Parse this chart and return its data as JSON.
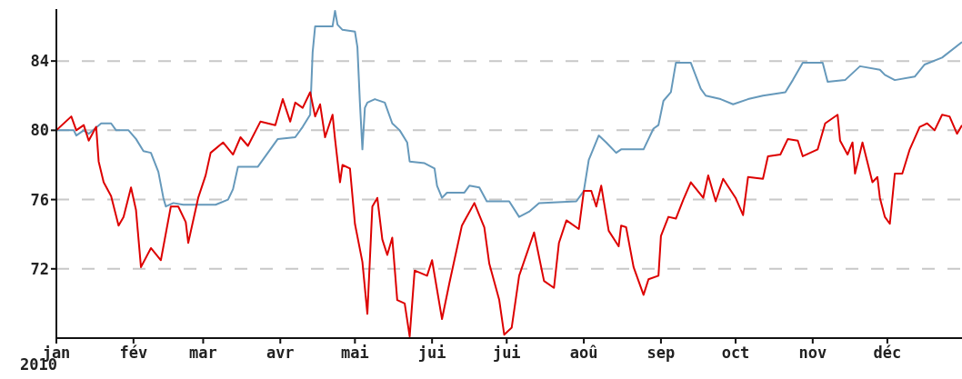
{
  "chart_data": {
    "type": "line",
    "annotations": [
      "2010"
    ],
    "xlim": [
      "2010-01-01",
      "2010-12-31"
    ],
    "xticks": [
      {
        "value": "2010-01-01",
        "label": "jan"
      },
      {
        "value": "2010-02-01",
        "label": "fév"
      },
      {
        "value": "2010-03-01",
        "label": "mar"
      },
      {
        "value": "2010-04-01",
        "label": "avr"
      },
      {
        "value": "2010-05-01",
        "label": "mai"
      },
      {
        "value": "2010-06-01",
        "label": "jui"
      },
      {
        "value": "2010-07-01",
        "label": "jui"
      },
      {
        "value": "2010-08-01",
        "label": "aoû"
      },
      {
        "value": "2010-09-01",
        "label": "sep"
      },
      {
        "value": "2010-10-01",
        "label": "oct"
      },
      {
        "value": "2010-11-01",
        "label": "nov"
      },
      {
        "value": "2010-12-01",
        "label": "déc"
      }
    ],
    "ylim": [
      68,
      87
    ],
    "yticks": [
      72,
      76,
      80,
      84
    ],
    "grid": "y",
    "marker": "none",
    "line_style": "solid",
    "series": [
      {
        "color": "#6699bb",
        "x": [
          "2010-01-01",
          "2010-01-08",
          "2010-01-09",
          "2010-01-12",
          "2010-01-14",
          "2010-01-19",
          "2010-01-23",
          "2010-01-25",
          "2010-01-30",
          "2010-02-02",
          "2010-02-05",
          "2010-02-08",
          "2010-02-11",
          "2010-02-13",
          "2010-02-14",
          "2010-02-17",
          "2010-02-21",
          "2010-03-06",
          "2010-03-11",
          "2010-03-13",
          "2010-03-15",
          "2010-03-23",
          "2010-03-27",
          "2010-03-31",
          "2010-04-07",
          "2010-04-10",
          "2010-04-13",
          "2010-04-14",
          "2010-04-15",
          "2010-04-22",
          "2010-04-23",
          "2010-04-24",
          "2010-04-26",
          "2010-05-01",
          "2010-05-02",
          "2010-05-03",
          "2010-05-04",
          "2010-05-05",
          "2010-05-06",
          "2010-05-09",
          "2010-05-13",
          "2010-05-16",
          "2010-05-19",
          "2010-05-22",
          "2010-05-23",
          "2010-05-29",
          "2010-06-02",
          "2010-06-03",
          "2010-06-05",
          "2010-06-07",
          "2010-06-14",
          "2010-06-16",
          "2010-06-20",
          "2010-06-23",
          "2010-07-02",
          "2010-07-06",
          "2010-07-10",
          "2010-07-14",
          "2010-07-29",
          "2010-08-01",
          "2010-08-03",
          "2010-08-07",
          "2010-08-10",
          "2010-08-14",
          "2010-08-16",
          "2010-08-25",
          "2010-08-29",
          "2010-08-31",
          "2010-09-02",
          "2010-09-05",
          "2010-09-07",
          "2010-09-13",
          "2010-09-17",
          "2010-09-19",
          "2010-09-25",
          "2010-09-30",
          "2010-10-06",
          "2010-10-12",
          "2010-10-21",
          "2010-10-24",
          "2010-10-28",
          "2010-11-05",
          "2010-11-07",
          "2010-11-14",
          "2010-11-20",
          "2010-11-28",
          "2010-11-30",
          "2010-12-04",
          "2010-12-12",
          "2010-12-16",
          "2010-12-23",
          "2010-12-31"
        ],
        "values": [
          80.0,
          80.0,
          79.7,
          80.0,
          79.8,
          80.4,
          80.4,
          80.0,
          80.0,
          79.5,
          78.8,
          78.7,
          77.6,
          76.1,
          75.6,
          75.8,
          75.7,
          75.7,
          76.0,
          76.6,
          77.9,
          77.9,
          78.7,
          79.5,
          79.6,
          80.2,
          80.9,
          84.5,
          86.0,
          86.0,
          86.9,
          86.1,
          85.8,
          85.7,
          84.8,
          81.6,
          78.9,
          81.3,
          81.6,
          81.8,
          81.6,
          80.4,
          80.0,
          79.3,
          78.2,
          78.1,
          77.8,
          76.8,
          76.1,
          76.4,
          76.4,
          76.8,
          76.7,
          75.9,
          75.9,
          75.0,
          75.3,
          75.8,
          75.9,
          76.5,
          78.3,
          79.7,
          79.3,
          78.7,
          78.9,
          78.9,
          80.1,
          80.3,
          81.7,
          82.2,
          83.9,
          83.9,
          82.4,
          82.0,
          81.8,
          81.5,
          81.8,
          82.0,
          82.2,
          82.9,
          83.9,
          83.9,
          82.8,
          82.9,
          83.7,
          83.5,
          83.2,
          82.9,
          83.1,
          83.8,
          84.2,
          85.1
        ]
      },
      {
        "color": "#dd0000",
        "x": [
          "2010-01-01",
          "2010-01-07",
          "2010-01-09",
          "2010-01-12",
          "2010-01-14",
          "2010-01-17",
          "2010-01-18",
          "2010-01-20",
          "2010-01-23",
          "2010-01-26",
          "2010-01-28",
          "2010-01-31",
          "2010-02-02",
          "2010-02-04",
          "2010-02-08",
          "2010-02-12",
          "2010-02-16",
          "2010-02-19",
          "2010-02-22",
          "2010-02-23",
          "2010-02-27",
          "2010-03-02",
          "2010-03-04",
          "2010-03-09",
          "2010-03-13",
          "2010-03-16",
          "2010-03-19",
          "2010-03-24",
          "2010-03-30",
          "2010-04-02",
          "2010-04-05",
          "2010-04-07",
          "2010-04-10",
          "2010-04-13",
          "2010-04-15",
          "2010-04-17",
          "2010-04-19",
          "2010-04-22",
          "2010-04-23",
          "2010-04-25",
          "2010-04-26",
          "2010-04-29",
          "2010-05-01",
          "2010-05-04",
          "2010-05-06",
          "2010-05-08",
          "2010-05-10",
          "2010-05-12",
          "2010-05-14",
          "2010-05-16",
          "2010-05-18",
          "2010-05-21",
          "2010-05-23",
          "2010-05-25",
          "2010-05-30",
          "2010-06-01",
          "2010-06-05",
          "2010-06-08",
          "2010-06-13",
          "2010-06-18",
          "2010-06-22",
          "2010-06-24",
          "2010-06-28",
          "2010-06-30",
          "2010-07-03",
          "2010-07-06",
          "2010-07-12",
          "2010-07-16",
          "2010-07-20",
          "2010-07-22",
          "2010-07-25",
          "2010-07-30",
          "2010-08-01",
          "2010-08-04",
          "2010-08-06",
          "2010-08-08",
          "2010-08-11",
          "2010-08-15",
          "2010-08-16",
          "2010-08-18",
          "2010-08-21",
          "2010-08-25",
          "2010-08-27",
          "2010-08-31",
          "2010-09-01",
          "2010-09-04",
          "2010-09-07",
          "2010-09-10",
          "2010-09-13",
          "2010-09-18",
          "2010-09-20",
          "2010-09-23",
          "2010-09-26",
          "2010-10-01",
          "2010-10-04",
          "2010-10-06",
          "2010-10-12",
          "2010-10-14",
          "2010-10-19",
          "2010-10-22",
          "2010-10-26",
          "2010-10-28",
          "2010-11-03",
          "2010-11-06",
          "2010-11-11",
          "2010-11-12",
          "2010-11-15",
          "2010-11-17",
          "2010-11-18",
          "2010-11-21",
          "2010-11-25",
          "2010-11-27",
          "2010-11-28",
          "2010-11-30",
          "2010-12-02",
          "2010-12-04",
          "2010-12-07",
          "2010-12-10",
          "2010-12-14",
          "2010-12-17",
          "2010-12-20",
          "2010-12-23",
          "2010-12-26",
          "2010-12-29",
          "2010-12-31"
        ],
        "values": [
          80.0,
          80.8,
          80.0,
          80.3,
          79.4,
          80.2,
          78.2,
          77.0,
          76.2,
          74.5,
          75.0,
          76.7,
          75.4,
          72.1,
          73.2,
          72.5,
          75.6,
          75.6,
          74.7,
          73.5,
          76.1,
          77.4,
          78.7,
          79.3,
          78.6,
          79.6,
          79.1,
          80.5,
          80.3,
          81.8,
          80.5,
          81.6,
          81.3,
          82.2,
          80.8,
          81.5,
          79.6,
          80.9,
          79.5,
          77.0,
          78.0,
          77.8,
          74.6,
          72.4,
          69.4,
          75.6,
          76.1,
          73.7,
          72.8,
          73.8,
          70.2,
          70.0,
          68.1,
          71.9,
          71.6,
          72.5,
          69.1,
          71.2,
          74.5,
          75.8,
          74.4,
          72.3,
          70.2,
          68.2,
          68.6,
          71.6,
          74.1,
          71.3,
          70.9,
          73.5,
          74.8,
          74.3,
          76.5,
          76.5,
          75.6,
          76.8,
          74.2,
          73.3,
          74.5,
          74.4,
          72.1,
          70.5,
          71.4,
          71.6,
          73.9,
          75.0,
          74.9,
          76.0,
          77.0,
          76.1,
          77.4,
          75.9,
          77.2,
          76.1,
          75.1,
          77.3,
          77.2,
          78.5,
          78.6,
          79.5,
          79.4,
          78.5,
          78.9,
          80.4,
          80.9,
          79.4,
          78.6,
          79.3,
          77.5,
          79.3,
          77.0,
          77.3,
          76.1,
          75.0,
          74.6,
          77.5,
          77.5,
          78.9,
          80.2,
          80.4,
          80.0,
          80.9,
          80.8,
          79.8,
          80.3
        ]
      }
    ]
  }
}
